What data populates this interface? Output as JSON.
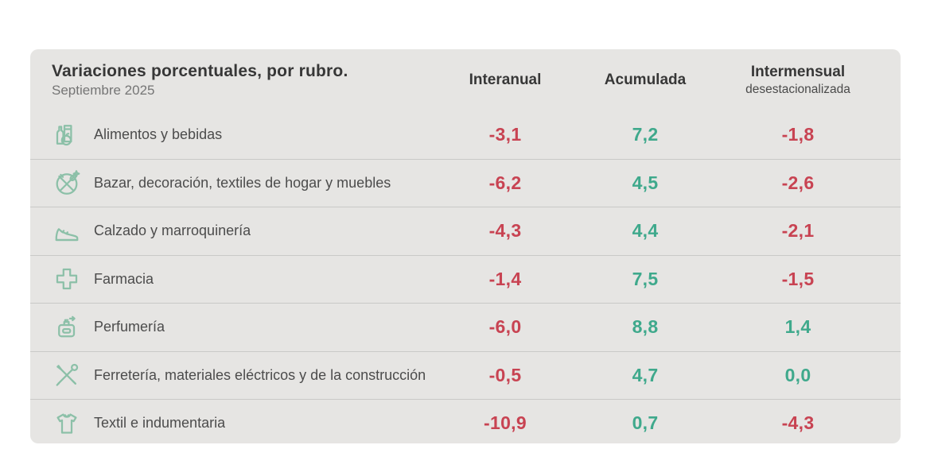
{
  "title": "Variaciones porcentuales, por rubro.",
  "subtitle": "Septiembre 2025",
  "columns": [
    {
      "label": "Interanual",
      "sublabel": ""
    },
    {
      "label": "Acumulada",
      "sublabel": ""
    },
    {
      "label": "Intermensual",
      "sublabel": "desestacionalizada"
    }
  ],
  "colors": {
    "negative": "#c84352",
    "positive": "#3fa98c",
    "icon": "#8cc0a8",
    "card_bg": "#e6e5e3"
  },
  "chart_data": {
    "type": "table",
    "title": "Variaciones porcentuales, por rubro. Septiembre 2025",
    "columns": [
      "Interanual",
      "Acumulada",
      "Intermensual desestacionalizada"
    ],
    "rows": [
      {
        "icon": "groceries-icon",
        "label": "Alimentos y bebidas",
        "values": [
          "-3,1",
          "7,2",
          "-1,8"
        ]
      },
      {
        "icon": "tableware-icon",
        "label": "Bazar, decoración, textiles de hogar y muebles",
        "values": [
          "-6,2",
          "4,5",
          "-2,6"
        ]
      },
      {
        "icon": "shoe-icon",
        "label": "Calzado y marroquinería",
        "values": [
          "-4,3",
          "4,4",
          "-2,1"
        ]
      },
      {
        "icon": "pharmacy-cross-icon",
        "label": "Farmacia",
        "values": [
          "-1,4",
          "7,5",
          "-1,5"
        ]
      },
      {
        "icon": "perfume-icon",
        "label": "Perfumería",
        "values": [
          "-6,0",
          "8,8",
          "1,4"
        ]
      },
      {
        "icon": "tools-icon",
        "label": "Ferretería, materiales eléctricos y de la construcción",
        "values": [
          "-0,5",
          "4,7",
          "0,0"
        ]
      },
      {
        "icon": "tshirt-icon",
        "label": "Textil e indumentaria",
        "values": [
          "-10,9",
          "0,7",
          "-4,3"
        ]
      }
    ]
  }
}
